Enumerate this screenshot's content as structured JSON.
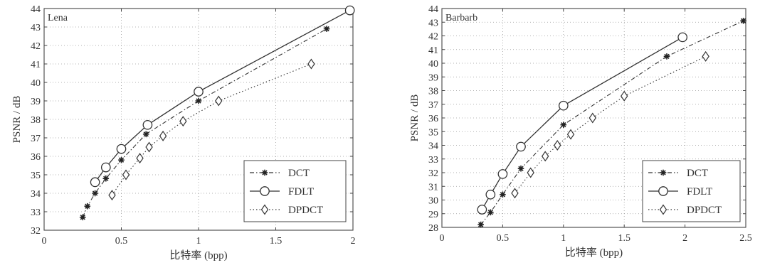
{
  "chart_data": [
    {
      "type": "line",
      "panel_title": "Lena",
      "xlabel": "比特率 (bpp)",
      "ylabel": "PSNR / dB",
      "xlim": [
        0,
        2
      ],
      "ylim": [
        32,
        44
      ],
      "xticks": [
        0,
        0.5,
        1,
        1.5,
        2
      ],
      "xtick_labels": [
        "0",
        "0.5",
        "1",
        "1.5",
        "2"
      ],
      "yticks": [
        32,
        33,
        34,
        35,
        36,
        37,
        38,
        39,
        40,
        41,
        42,
        43,
        44
      ],
      "grid": true,
      "legend_position": "bottom-right",
      "series": [
        {
          "name": "DCT",
          "marker": "star",
          "line": "dashdot",
          "color": "#333333",
          "x": [
            0.25,
            0.28,
            0.33,
            0.4,
            0.5,
            0.66,
            1.0,
            1.83
          ],
          "y": [
            32.7,
            33.3,
            34.0,
            34.8,
            35.8,
            37.2,
            39.0,
            42.9
          ]
        },
        {
          "name": "FDLT",
          "marker": "circle",
          "line": "solid",
          "color": "#333333",
          "x": [
            0.33,
            0.4,
            0.5,
            0.67,
            1.0,
            1.98
          ],
          "y": [
            34.6,
            35.4,
            36.4,
            37.7,
            39.5,
            43.9
          ]
        },
        {
          "name": "DPDCT",
          "marker": "diamond",
          "line": "dotted",
          "color": "#333333",
          "x": [
            0.44,
            0.53,
            0.62,
            0.68,
            0.77,
            0.9,
            1.13,
            1.73
          ],
          "y": [
            33.9,
            35.0,
            35.9,
            36.5,
            37.1,
            37.9,
            39.0,
            41.0
          ]
        }
      ]
    },
    {
      "type": "line",
      "panel_title": "Barbarb",
      "xlabel": "比特率 (bpp)",
      "ylabel": "PSNR / dB",
      "xlim": [
        0,
        2.5
      ],
      "ylim": [
        28,
        44
      ],
      "xticks": [
        0,
        0.5,
        1,
        1.5,
        2,
        2.5
      ],
      "xtick_labels": [
        "0",
        "0.5",
        "1",
        "1.5",
        "2",
        "2.5"
      ],
      "yticks": [
        28,
        29,
        30,
        31,
        32,
        33,
        34,
        35,
        36,
        37,
        38,
        39,
        40,
        41,
        42,
        43,
        44
      ],
      "grid": true,
      "legend_position": "bottom-right",
      "series": [
        {
          "name": "DCT",
          "marker": "star",
          "line": "dashdot",
          "color": "#333333",
          "x": [
            0.32,
            0.4,
            0.5,
            0.65,
            1.0,
            1.85,
            2.48
          ],
          "y": [
            28.2,
            29.1,
            30.4,
            32.3,
            35.5,
            40.5,
            43.1
          ]
        },
        {
          "name": "FDLT",
          "marker": "circle",
          "line": "solid",
          "color": "#333333",
          "x": [
            0.33,
            0.4,
            0.5,
            0.65,
            1.0,
            1.98
          ],
          "y": [
            29.3,
            30.4,
            31.9,
            33.9,
            36.9,
            41.9
          ]
        },
        {
          "name": "DPDCT",
          "marker": "diamond",
          "line": "dotted",
          "color": "#333333",
          "x": [
            0.6,
            0.73,
            0.85,
            0.95,
            1.06,
            1.24,
            1.5,
            2.17
          ],
          "y": [
            30.5,
            32.0,
            33.2,
            34.0,
            34.8,
            36.0,
            37.6,
            40.5
          ]
        }
      ]
    }
  ]
}
